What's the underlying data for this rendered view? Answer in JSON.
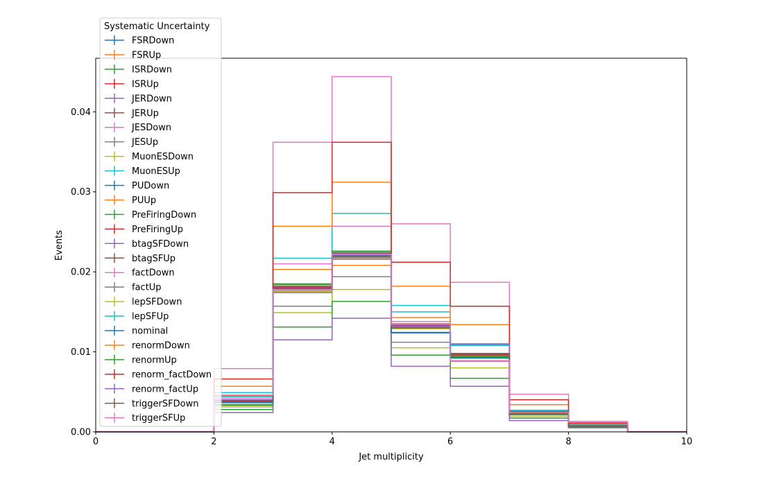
{
  "chart_data": {
    "type": "step",
    "xlabel": "Jet multiplicity",
    "ylabel": "Events",
    "xlim": [
      0,
      10
    ],
    "ylim": [
      0,
      0.0467
    ],
    "x_ticks": [
      "0",
      "2",
      "4",
      "6",
      "8",
      "10"
    ],
    "y_ticks": [
      "0.00",
      "0.01",
      "0.02",
      "0.03",
      "0.04"
    ],
    "bin_edges": [
      0,
      1,
      2,
      3,
      4,
      5,
      6,
      7,
      8,
      9,
      10
    ],
    "grid": false,
    "legend": {
      "title": "Systematic Uncertainty",
      "placement": "upper-left"
    },
    "series": [
      {
        "name": "FSRDown",
        "color": "#1f77b4",
        "values": [
          0,
          0,
          0.0036,
          0.018,
          0.0222,
          0.0129,
          0.0094,
          0.0022,
          0.0007,
          0
        ]
      },
      {
        "name": "FSRUp",
        "color": "#ff7f0e",
        "values": [
          0,
          0,
          0.0039,
          0.0176,
          0.0225,
          0.0133,
          0.0095,
          0.0024,
          0.0008,
          0
        ]
      },
      {
        "name": "ISRDown",
        "color": "#2ca02c",
        "values": [
          0,
          0,
          0.0038,
          0.0185,
          0.0226,
          0.0131,
          0.0092,
          0.0023,
          0.0007,
          0
        ]
      },
      {
        "name": "ISRUp",
        "color": "#d62728",
        "values": [
          0,
          0,
          0.0037,
          0.0179,
          0.0219,
          0.0134,
          0.0097,
          0.0023,
          0.0008,
          0
        ]
      },
      {
        "name": "JERDown",
        "color": "#9467bd",
        "values": [
          0,
          0,
          0.0037,
          0.0181,
          0.0221,
          0.013,
          0.0093,
          0.0022,
          0.0007,
          0
        ]
      },
      {
        "name": "JERUp",
        "color": "#8c564b",
        "values": [
          0,
          0,
          0.0038,
          0.018,
          0.0223,
          0.0132,
          0.0095,
          0.0023,
          0.0007,
          0
        ]
      },
      {
        "name": "JESDown",
        "color": "#e377c2",
        "values": [
          0,
          0,
          0.0042,
          0.021,
          0.0257,
          0.0138,
          0.0089,
          0.0021,
          0.0007,
          0
        ]
      },
      {
        "name": "JESUp",
        "color": "#7f7f7f",
        "values": [
          0,
          0,
          0.0034,
          0.0157,
          0.0194,
          0.0112,
          0.0096,
          0.0024,
          0.0008,
          0
        ]
      },
      {
        "name": "MuonESDown",
        "color": "#bcbd22",
        "values": [
          0,
          0,
          0.0031,
          0.0149,
          0.0178,
          0.0105,
          0.008,
          0.0019,
          0.0006,
          0
        ]
      },
      {
        "name": "MuonESUp",
        "color": "#17becf",
        "values": [
          0,
          0,
          0.0049,
          0.0217,
          0.0273,
          0.0158,
          0.0108,
          0.0026,
          0.0008,
          0
        ]
      },
      {
        "name": "PUDown",
        "color": "#1f77b4",
        "values": [
          0,
          0,
          0.0037,
          0.018,
          0.0221,
          0.013,
          0.0094,
          0.0022,
          0.0007,
          0
        ]
      },
      {
        "name": "PUUp",
        "color": "#ff7f0e",
        "values": [
          0,
          0,
          0.0045,
          0.0203,
          0.0208,
          0.0143,
          0.0088,
          0.0021,
          0.0007,
          0
        ]
      },
      {
        "name": "PreFiringDown",
        "color": "#2ca02c",
        "values": [
          0,
          0,
          0.0028,
          0.0131,
          0.0163,
          0.0096,
          0.0067,
          0.0017,
          0.0006,
          0
        ]
      },
      {
        "name": "PreFiringUp",
        "color": "#d62728",
        "values": [
          0,
          0,
          0.0039,
          0.018,
          0.0218,
          0.0133,
          0.0096,
          0.0024,
          0.0008,
          0
        ]
      },
      {
        "name": "btagSFDown",
        "color": "#9467bd",
        "values": [
          0,
          0,
          0.0024,
          0.0115,
          0.0142,
          0.0082,
          0.0057,
          0.0014,
          0.0005,
          0
        ]
      },
      {
        "name": "btagSFUp",
        "color": "#8c564b",
        "values": [
          0,
          0,
          0.004,
          0.0182,
          0.0216,
          0.0135,
          0.0098,
          0.0025,
          0.0008,
          0
        ]
      },
      {
        "name": "factDown",
        "color": "#e377c2",
        "values": [
          0,
          0,
          0.0079,
          0.0362,
          0.0444,
          0.026,
          0.0187,
          0.0047,
          0.0013,
          0
        ]
      },
      {
        "name": "factUp",
        "color": "#7f7f7f",
        "values": [
          0,
          0,
          0.0037,
          0.0174,
          0.0224,
          0.0131,
          0.0095,
          0.0023,
          0.0007,
          0
        ]
      },
      {
        "name": "lepSFDown",
        "color": "#bcbd22",
        "values": [
          0,
          0,
          0.0036,
          0.0175,
          0.0219,
          0.0129,
          0.0093,
          0.0022,
          0.0007,
          0
        ]
      },
      {
        "name": "lepSFUp",
        "color": "#17becf",
        "values": [
          0,
          0,
          0.0044,
          0.0178,
          0.0222,
          0.015,
          0.0109,
          0.0027,
          0.0009,
          0
        ]
      },
      {
        "name": "nominal",
        "color": "#1f77b4",
        "values": [
          0,
          0,
          0.0037,
          0.0178,
          0.022,
          0.0124,
          0.0093,
          0.0022,
          0.0007,
          0
        ]
      },
      {
        "name": "renormDown",
        "color": "#ff7f0e",
        "values": [
          0,
          0,
          0.0057,
          0.0257,
          0.0312,
          0.0182,
          0.0134,
          0.0034,
          0.001,
          0
        ]
      },
      {
        "name": "renormUp",
        "color": "#2ca02c",
        "values": [
          0,
          0,
          0.0033,
          0.0184,
          0.0226,
          0.0132,
          0.0094,
          0.0022,
          0.0007,
          0
        ]
      },
      {
        "name": "renorm_factDown",
        "color": "#d62728",
        "values": [
          0,
          0,
          0.0066,
          0.0299,
          0.0362,
          0.0212,
          0.0157,
          0.004,
          0.0011,
          0
        ]
      },
      {
        "name": "renorm_factUp",
        "color": "#9467bd",
        "values": [
          0,
          0,
          0.004,
          0.0178,
          0.0221,
          0.0132,
          0.011,
          0.0023,
          0.0007,
          0
        ]
      },
      {
        "name": "triggerSFDown",
        "color": "#8c564b",
        "values": [
          0,
          0,
          0.0038,
          0.0178,
          0.0218,
          0.013,
          0.0097,
          0.0023,
          0.0007,
          0
        ]
      },
      {
        "name": "triggerSFUp",
        "color": "#e377c2",
        "values": [
          0,
          0,
          0.0046,
          0.0178,
          0.0222,
          0.0134,
          0.0089,
          0.0024,
          0.0012,
          0
        ]
      }
    ]
  }
}
